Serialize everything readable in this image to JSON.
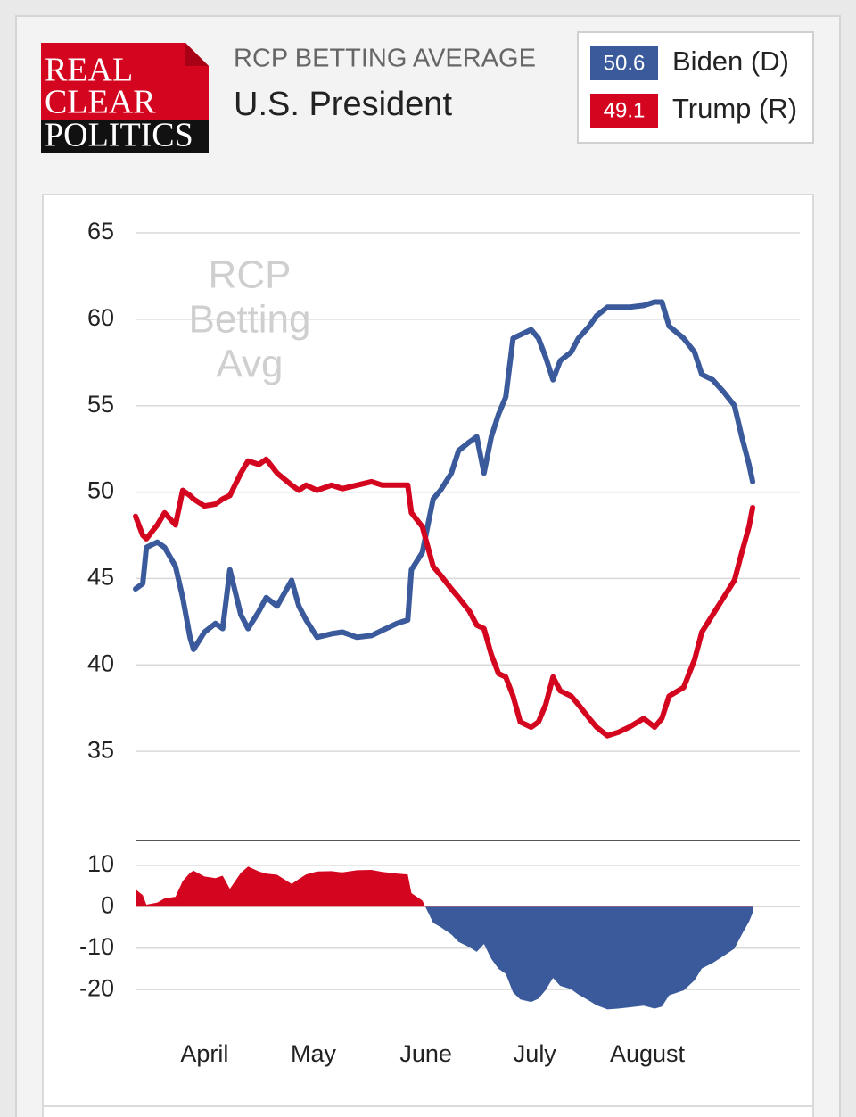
{
  "header": {
    "logo": [
      "REAL",
      "CLEAR",
      "POLITICS"
    ],
    "subtitle": "RCP BETTING AVERAGE",
    "title": "U.S. President"
  },
  "chart_data": [
    {
      "type": "line",
      "watermark": [
        "RCP",
        "Betting",
        "Avg"
      ],
      "x": [
        0,
        2,
        3,
        6,
        8,
        11,
        13,
        15,
        16,
        19,
        22,
        24,
        26,
        29,
        31,
        34,
        36,
        39,
        43,
        45,
        47,
        50,
        54,
        57,
        61,
        65,
        68,
        72,
        75,
        76,
        79,
        82,
        84,
        87,
        89,
        92,
        94,
        96,
        98,
        100,
        102,
        104,
        106,
        109,
        111,
        113,
        115,
        117,
        120,
        122,
        125,
        127,
        130,
        133,
        136,
        140,
        143,
        145,
        147,
        151,
        154,
        156,
        159,
        162,
        165,
        167,
        169,
        170
      ],
      "xlim": [
        0,
        183
      ],
      "ylim": [
        30,
        65
      ],
      "yticks": [
        35,
        40,
        45,
        50,
        55,
        60,
        65
      ],
      "grid": true,
      "series": [
        {
          "name": "Biden (D)",
          "color": "#3a5a9b",
          "latest": 50.6,
          "values": [
            44.4,
            44.7,
            46.8,
            47.1,
            46.8,
            45.7,
            43.9,
            41.6,
            40.9,
            41.9,
            42.4,
            42.1,
            45.5,
            42.9,
            42.1,
            43.1,
            43.9,
            43.4,
            44.9,
            43.4,
            42.6,
            41.6,
            41.8,
            41.9,
            41.6,
            41.7,
            42.0,
            42.4,
            42.6,
            45.5,
            46.5,
            49.6,
            50.1,
            51.1,
            52.4,
            52.9,
            53.2,
            51.1,
            53.2,
            54.5,
            55.5,
            58.9,
            59.1,
            59.4,
            58.9,
            57.8,
            56.5,
            57.6,
            58.1,
            58.9,
            59.6,
            60.2,
            60.7,
            60.7,
            60.7,
            60.8,
            61.0,
            61.0,
            59.6,
            58.9,
            58.1,
            56.8,
            56.5,
            55.8,
            55.0,
            53.2,
            51.6,
            50.6
          ]
        },
        {
          "name": "Trump (R)",
          "color": "#d4051f",
          "latest": 49.1,
          "values": [
            48.6,
            47.5,
            47.3,
            48.1,
            48.8,
            48.1,
            50.1,
            49.8,
            49.6,
            49.2,
            49.3,
            49.6,
            49.8,
            51.1,
            51.8,
            51.6,
            51.9,
            51.1,
            50.4,
            50.1,
            50.4,
            50.1,
            50.4,
            50.2,
            50.4,
            50.6,
            50.4,
            50.4,
            50.4,
            48.8,
            48.0,
            45.7,
            45.2,
            44.4,
            43.9,
            43.1,
            42.3,
            42.1,
            40.6,
            39.5,
            39.3,
            38.2,
            36.7,
            36.4,
            36.7,
            37.7,
            39.3,
            38.5,
            38.2,
            37.7,
            36.9,
            36.4,
            35.9,
            36.1,
            36.4,
            36.9,
            36.4,
            36.9,
            38.2,
            38.7,
            40.3,
            41.9,
            42.9,
            43.9,
            44.9,
            46.5,
            48.0,
            49.1
          ]
        }
      ]
    },
    {
      "type": "area",
      "x": [
        0,
        2,
        3,
        6,
        8,
        11,
        13,
        15,
        16,
        19,
        22,
        24,
        26,
        29,
        31,
        34,
        36,
        39,
        43,
        45,
        47,
        50,
        54,
        57,
        61,
        65,
        68,
        72,
        75,
        76,
        79,
        82,
        84,
        87,
        89,
        92,
        94,
        96,
        98,
        100,
        102,
        104,
        106,
        109,
        111,
        113,
        115,
        117,
        120,
        122,
        125,
        127,
        130,
        133,
        136,
        140,
        143,
        145,
        147,
        151,
        154,
        156,
        159,
        162,
        165,
        167,
        169,
        170
      ],
      "values": [
        4.2,
        2.8,
        0.5,
        1.0,
        2.0,
        2.4,
        6.2,
        8.2,
        8.7,
        7.3,
        6.9,
        7.5,
        4.3,
        8.2,
        9.7,
        8.5,
        8.0,
        7.7,
        5.5,
        6.7,
        7.8,
        8.5,
        8.6,
        8.3,
        8.8,
        8.9,
        8.4,
        8.0,
        7.8,
        3.3,
        1.5,
        -3.9,
        -4.9,
        -6.7,
        -8.5,
        -9.8,
        -10.9,
        -9.0,
        -12.6,
        -15.0,
        -16.2,
        -20.7,
        -22.4,
        -23.0,
        -22.2,
        -20.1,
        -17.2,
        -19.1,
        -19.9,
        -21.2,
        -22.7,
        -23.8,
        -24.8,
        -24.6,
        -24.3,
        -23.9,
        -24.6,
        -24.1,
        -21.4,
        -20.2,
        -17.8,
        -14.9,
        -13.6,
        -11.9,
        -10.1,
        -6.7,
        -3.6,
        -1.5
      ],
      "color_positive": "#d4051f",
      "color_negative": "#3a5a9b",
      "xlim": [
        0,
        183
      ],
      "xticks": [
        {
          "value": 19,
          "label": "April"
        },
        {
          "value": 49,
          "label": "May"
        },
        {
          "value": 80,
          "label": "June"
        },
        {
          "value": 110,
          "label": "July"
        },
        {
          "value": 141,
          "label": "August"
        }
      ],
      "ylim": [
        -26,
        16
      ],
      "yticks": [
        -20,
        -10,
        0,
        10
      ],
      "grid": true
    }
  ]
}
